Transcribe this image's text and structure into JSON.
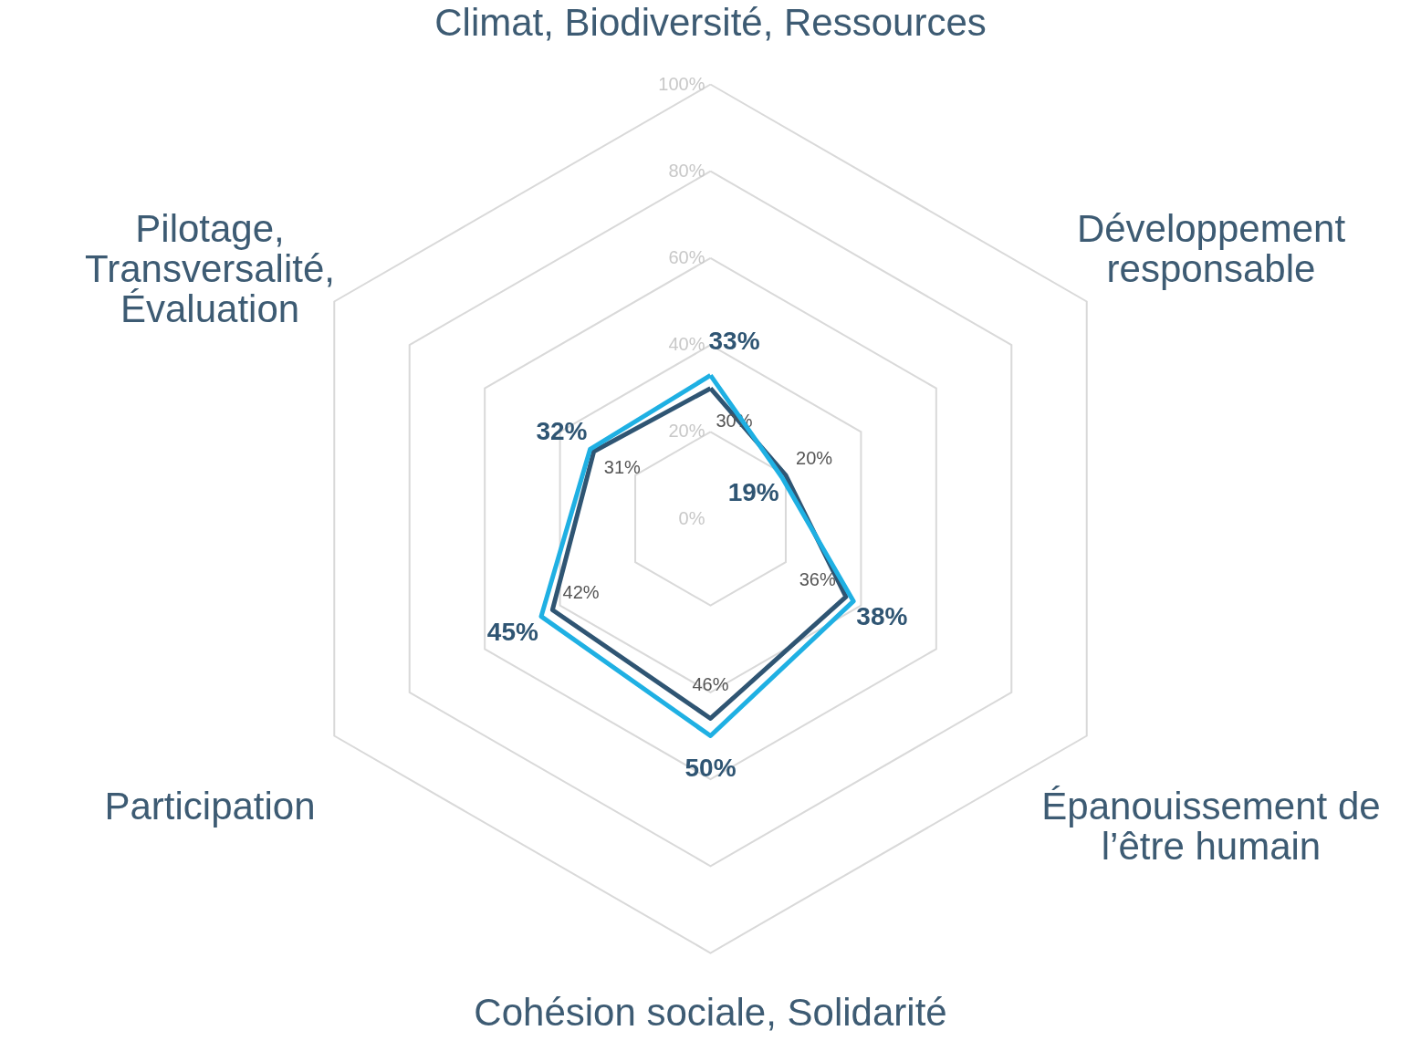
{
  "chart_data": {
    "type": "radar",
    "categories": [
      "Climat, Biodiversité, Ressources",
      "Développement\nresponsable",
      "Épanouissement de\nl’être humain",
      "Cohésion sociale, Solidarité",
      "Participation",
      "Pilotage,\nTransversalité,\nÉvaluation"
    ],
    "series": [
      {
        "color": "#2f5573",
        "values": [
          30,
          20,
          36,
          46,
          42,
          31
        ],
        "value_labels": [
          "30%",
          "20%",
          "36%",
          "46%",
          "42%",
          "31%"
        ]
      },
      {
        "color": "#1fb0e3",
        "values": [
          33,
          19,
          38,
          50,
          45,
          32
        ],
        "value_labels": [
          "33%",
          "19%",
          "38%",
          "50%",
          "45%",
          "32%"
        ]
      }
    ],
    "ylim": [
      0,
      100
    ],
    "yticks": [
      {
        "value": 0,
        "label": "0%"
      },
      {
        "value": 20,
        "label": "20%"
      },
      {
        "value": 40,
        "label": "40%"
      },
      {
        "value": 60,
        "label": "60%"
      },
      {
        "value": 80,
        "label": "80%"
      },
      {
        "value": 100,
        "label": "100%"
      }
    ],
    "grid": true,
    "line_style": "solid"
  }
}
